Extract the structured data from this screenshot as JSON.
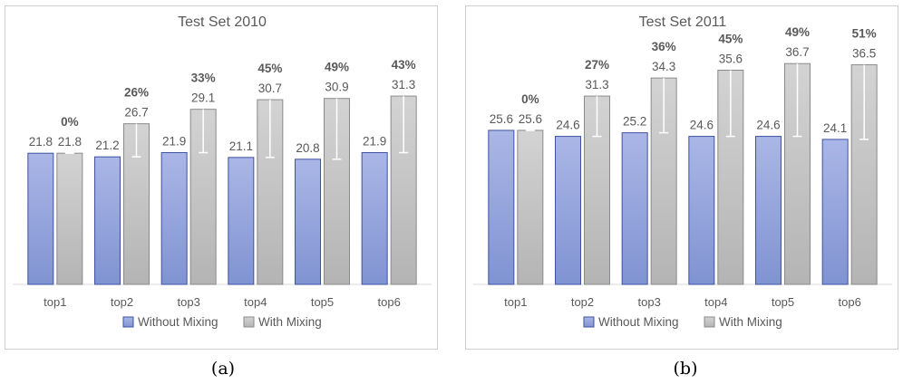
{
  "colors": {
    "without_fill_top": "#aab6e6",
    "without_fill_bottom": "#8093d2",
    "without_stroke": "#3d52a3",
    "with_fill_top": "#d3d3d3",
    "with_fill_bottom": "#b4b4b4",
    "with_stroke": "#8a8a8a",
    "text": "#595959",
    "pct_text": "#595959",
    "axis": "#d9d9d9"
  },
  "chart_data": [
    {
      "type": "bar",
      "title": "Test Set 2010",
      "caption": "(a)",
      "categories": [
        "top1",
        "top2",
        "top3",
        "top4",
        "top5",
        "top6"
      ],
      "ylim": [
        0,
        42
      ],
      "legend_position": "bottom",
      "series": [
        {
          "name": "Without Mixing",
          "values": [
            21.8,
            21.2,
            21.9,
            21.1,
            20.8,
            21.9
          ]
        },
        {
          "name": "With Mixing",
          "values": [
            21.8,
            26.7,
            29.1,
            30.7,
            30.9,
            31.3
          ]
        }
      ],
      "improvement_labels": [
        "0%",
        "26%",
        "33%",
        "45%",
        "49%",
        "43%"
      ],
      "improvement_bar_low": [
        21.8,
        21.2,
        21.9,
        21.1,
        20.8,
        21.9
      ]
    },
    {
      "type": "bar",
      "title": "Test Set 2011",
      "caption": "(b)",
      "categories": [
        "top1",
        "top2",
        "top3",
        "top4",
        "top5",
        "top6"
      ],
      "ylim": [
        0,
        42
      ],
      "legend_position": "bottom",
      "series": [
        {
          "name": "Without Mixing",
          "values": [
            25.6,
            24.6,
            25.2,
            24.6,
            24.6,
            24.1
          ]
        },
        {
          "name": "With Mixing",
          "values": [
            25.6,
            31.3,
            34.3,
            35.6,
            36.7,
            36.5
          ]
        }
      ],
      "improvement_labels": [
        "0%",
        "27%",
        "36%",
        "45%",
        "49%",
        "51%"
      ],
      "improvement_bar_low": [
        25.6,
        24.6,
        25.2,
        24.6,
        24.6,
        24.1
      ]
    }
  ]
}
